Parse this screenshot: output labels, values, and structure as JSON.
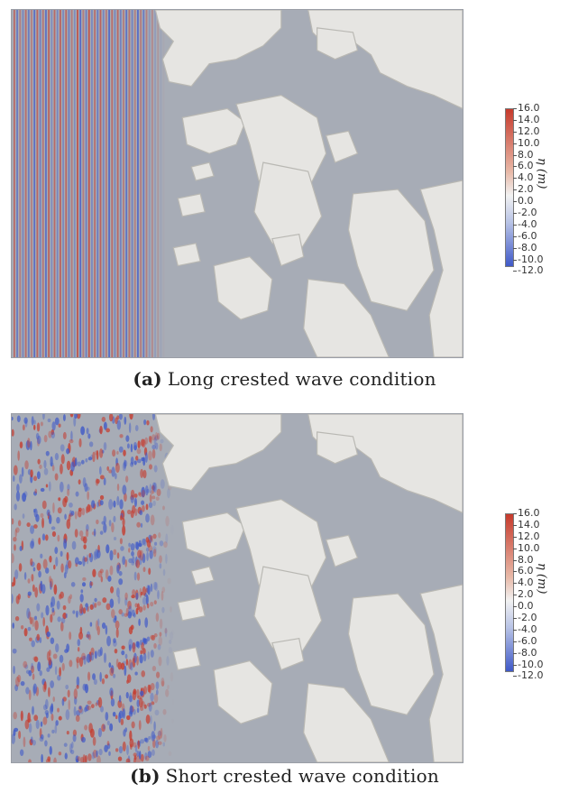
{
  "colors": {
    "sea": "#a7acb6",
    "land": "#e6e5e2",
    "land_edge": "#b9b8b3",
    "wave_high": "#c63a2c",
    "wave_low": "#3f59c8"
  },
  "panels": [
    {
      "tag": "(a)",
      "caption": "Long crested wave condition",
      "wave_pattern": "long-crested",
      "colorbar": {
        "label": "η (m)",
        "ticks": [
          "16.0",
          "14.0",
          "12.0",
          "10.0",
          "8.0",
          "6.0",
          "4.0",
          "2.0",
          "0.0",
          "-2.0",
          "-4.0",
          "-6.0",
          "-8.0",
          "-10.0",
          "-12.0"
        ]
      }
    },
    {
      "tag": "(b)",
      "caption": "Short crested wave condition",
      "wave_pattern": "short-crested",
      "colorbar": {
        "label": "η (m)",
        "ticks": [
          "16.0",
          "14.0",
          "12.0",
          "10.0",
          "8.0",
          "6.0",
          "4.0",
          "2.0",
          "0.0",
          "-2.0",
          "-4.0",
          "-6.0",
          "-8.0",
          "-10.0",
          "-12.0"
        ]
      }
    }
  ]
}
